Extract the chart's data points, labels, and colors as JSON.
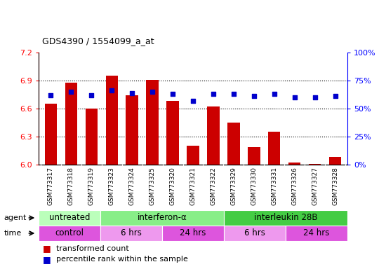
{
  "title": "GDS4390 / 1554099_a_at",
  "samples": [
    "GSM773317",
    "GSM773318",
    "GSM773319",
    "GSM773323",
    "GSM773324",
    "GSM773325",
    "GSM773320",
    "GSM773321",
    "GSM773322",
    "GSM773329",
    "GSM773330",
    "GSM773331",
    "GSM773326",
    "GSM773327",
    "GSM773328"
  ],
  "transformed_count": [
    6.65,
    6.88,
    6.6,
    6.95,
    6.74,
    6.91,
    6.68,
    6.2,
    6.62,
    6.45,
    6.19,
    6.35,
    6.02,
    6.01,
    6.08
  ],
  "percentile_rank": [
    62,
    65,
    62,
    66,
    64,
    65,
    63,
    57,
    63,
    63,
    61,
    63,
    60,
    60,
    61
  ],
  "ylim": [
    6.0,
    7.2
  ],
  "y2lim": [
    0,
    100
  ],
  "yticks": [
    6.0,
    6.3,
    6.6,
    6.9,
    7.2
  ],
  "y2ticks": [
    0,
    25,
    50,
    75,
    100
  ],
  "y2ticklabels": [
    "0%",
    "25%",
    "50%",
    "75%",
    "100%"
  ],
  "bar_color": "#cc0000",
  "dot_color": "#0000cc",
  "agent_groups": [
    {
      "label": "untreated",
      "start": 0,
      "end": 3,
      "color": "#bbffbb"
    },
    {
      "label": "interferon-α",
      "start": 3,
      "end": 9,
      "color": "#88ee88"
    },
    {
      "label": "interleukin 28B",
      "start": 9,
      "end": 15,
      "color": "#44cc44"
    }
  ],
  "time_groups": [
    {
      "label": "control",
      "start": 0,
      "end": 3,
      "color": "#dd55dd"
    },
    {
      "label": "6 hrs",
      "start": 3,
      "end": 6,
      "color": "#ee99ee"
    },
    {
      "label": "24 hrs",
      "start": 6,
      "end": 9,
      "color": "#dd55dd"
    },
    {
      "label": "6 hrs",
      "start": 9,
      "end": 12,
      "color": "#ee99ee"
    },
    {
      "label": "24 hrs",
      "start": 12,
      "end": 15,
      "color": "#dd55dd"
    }
  ],
  "xtick_bg_color": "#d0d0d0",
  "bar_color_legend": "#cc0000",
  "dot_color_legend": "#0000cc"
}
